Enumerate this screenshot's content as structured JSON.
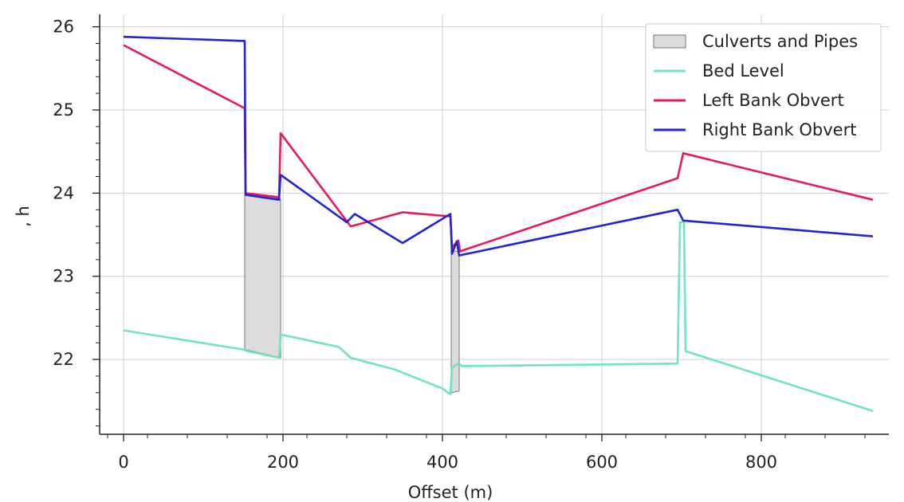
{
  "chart_data": {
    "type": "line",
    "title": "",
    "xlabel": "Offset (m)",
    "ylabel": ", h",
    "xlim": [
      -30,
      960
    ],
    "ylim": [
      21.1,
      26.15
    ],
    "xticks": [
      0,
      200,
      400,
      600,
      800
    ],
    "yticks": [
      22,
      23,
      24,
      25,
      26
    ],
    "grid": true,
    "legend_position": "top-right",
    "legend": [
      {
        "label": "Culverts and Pipes",
        "kind": "patch"
      },
      {
        "label": "Bed Level",
        "kind": "line"
      },
      {
        "label": "Left Bank Obvert",
        "kind": "line"
      },
      {
        "label": "Right Bank Obvert",
        "kind": "line"
      }
    ],
    "series": [
      {
        "name": "Bed Level",
        "color": "#6fe3c5",
        "points": [
          [
            0,
            22.35
          ],
          [
            150,
            22.12
          ],
          [
            155,
            22.1
          ],
          [
            195,
            22.02
          ],
          [
            197,
            22.3
          ],
          [
            270,
            22.15
          ],
          [
            285,
            22.02
          ],
          [
            340,
            21.88
          ],
          [
            400,
            21.65
          ],
          [
            410,
            21.58
          ],
          [
            412,
            21.9
          ],
          [
            420,
            21.95
          ],
          [
            425,
            21.92
          ],
          [
            695,
            21.95
          ],
          [
            698,
            23.65
          ],
          [
            703,
            23.65
          ],
          [
            705,
            22.1
          ],
          [
            940,
            21.38
          ]
        ]
      },
      {
        "name": "Left Bank Obvert",
        "color": "#e8195a",
        "points": [
          [
            0,
            25.78
          ],
          [
            152,
            25.02
          ],
          [
            153,
            24.0
          ],
          [
            195,
            23.95
          ],
          [
            197,
            24.72
          ],
          [
            285,
            23.6
          ],
          [
            350,
            23.77
          ],
          [
            410,
            23.72
          ],
          [
            412,
            23.35
          ],
          [
            420,
            23.43
          ],
          [
            422,
            23.3
          ],
          [
            695,
            24.18
          ],
          [
            702,
            24.48
          ],
          [
            940,
            23.92
          ]
        ]
      },
      {
        "name": "Right Bank Obvert",
        "color": "#2222d8",
        "points": [
          [
            0,
            25.88
          ],
          [
            152,
            25.83
          ],
          [
            153,
            23.98
          ],
          [
            195,
            23.92
          ],
          [
            197,
            24.22
          ],
          [
            280,
            23.65
          ],
          [
            290,
            23.75
          ],
          [
            350,
            23.4
          ],
          [
            410,
            23.75
          ],
          [
            412,
            23.27
          ],
          [
            418,
            23.42
          ],
          [
            421,
            23.25
          ],
          [
            695,
            23.8
          ],
          [
            702,
            23.67
          ],
          [
            940,
            23.48
          ]
        ]
      }
    ],
    "culverts": [
      {
        "x0": 152,
        "x1": 197,
        "top_left": 23.98,
        "top_right": 23.93,
        "bottom_left": 22.12,
        "bottom_right": 22.02
      },
      {
        "x0": 411,
        "x1": 421,
        "top_left": 23.3,
        "top_right": 23.3,
        "bottom_left": 21.6,
        "bottom_right": 21.62
      }
    ],
    "culvert_fill": "#dcdcdc",
    "culvert_stroke": "#888888"
  }
}
